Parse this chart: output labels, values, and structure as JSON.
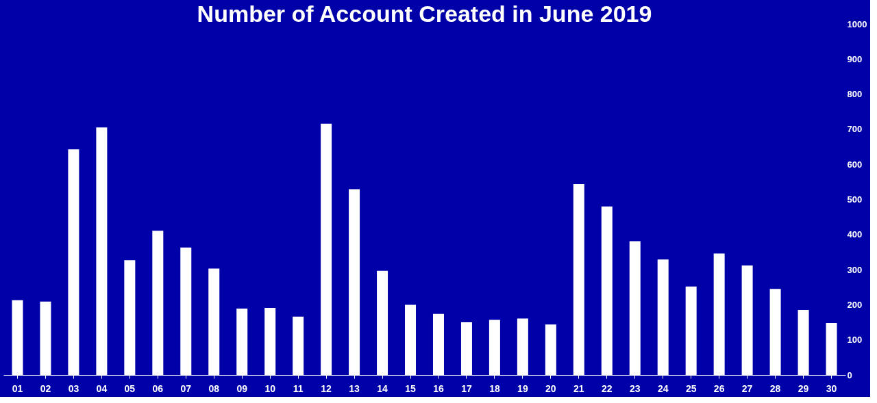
{
  "chart_data": {
    "type": "bar",
    "title": "Number of Account Created in June 2019",
    "categories": [
      "01",
      "02",
      "03",
      "04",
      "05",
      "06",
      "07",
      "08",
      "09",
      "10",
      "11",
      "12",
      "13",
      "14",
      "15",
      "16",
      "17",
      "18",
      "19",
      "20",
      "21",
      "22",
      "23",
      "24",
      "25",
      "26",
      "27",
      "28",
      "29",
      "30"
    ],
    "values": [
      213,
      209,
      643,
      705,
      327,
      411,
      363,
      303,
      189,
      191,
      166,
      716,
      529,
      297,
      200,
      174,
      150,
      157,
      161,
      144,
      544,
      480,
      381,
      329,
      252,
      346,
      312,
      245,
      185,
      148
    ],
    "color": "#ffffff",
    "ylim": [
      0,
      1000
    ],
    "yticks": [
      0,
      100,
      200,
      300,
      400,
      500,
      600,
      700,
      800,
      900,
      1000
    ],
    "grid": false
  }
}
